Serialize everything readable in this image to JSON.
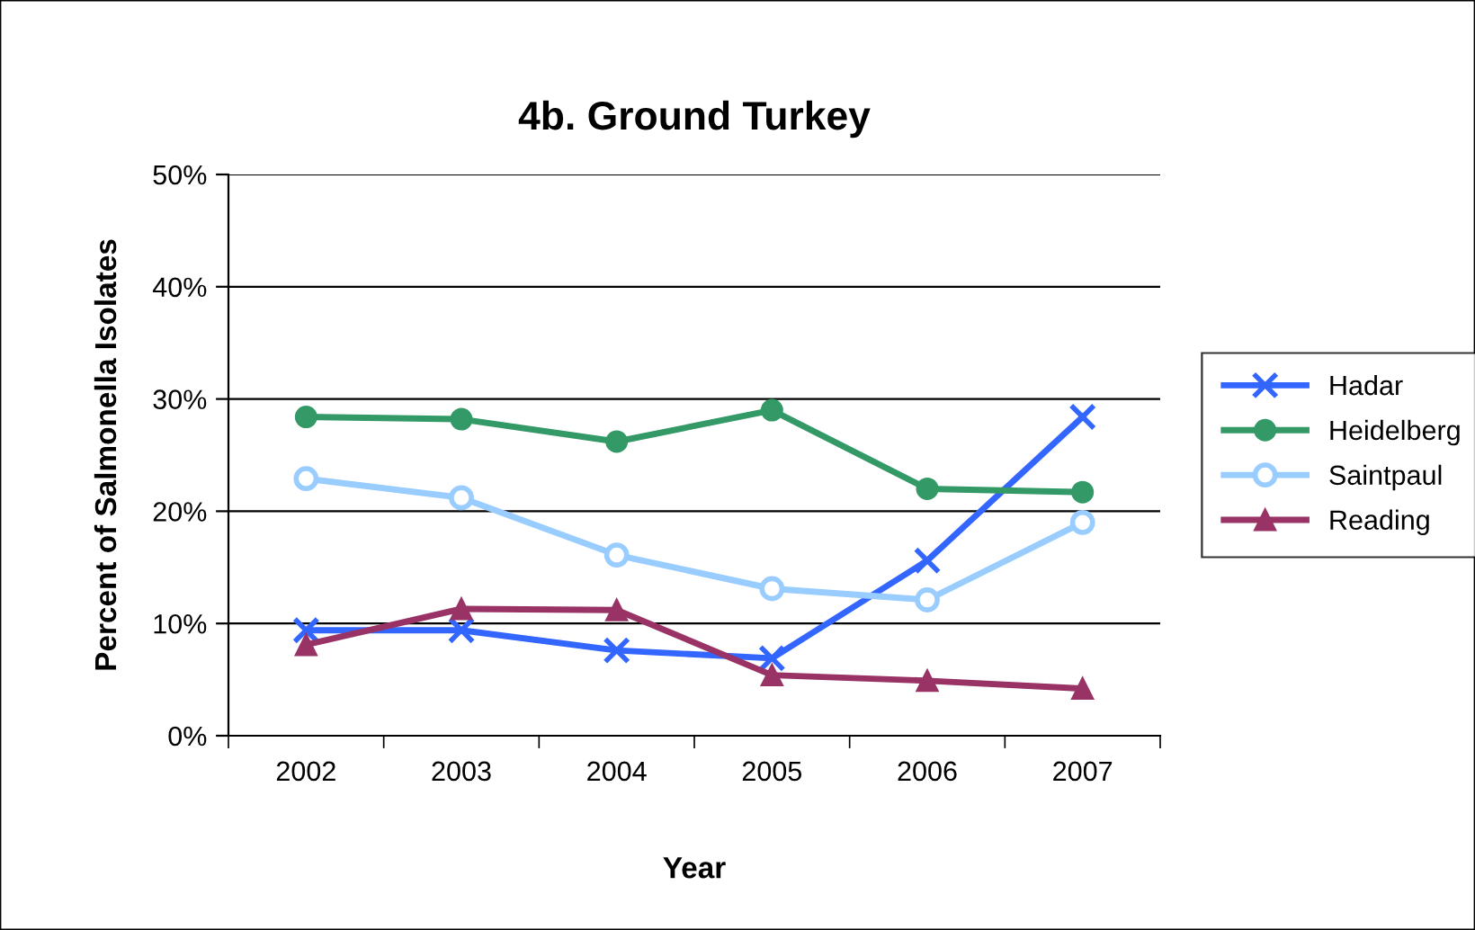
{
  "chart_data": {
    "type": "line",
    "title": "4b. Ground Turkey",
    "xlabel": "Year",
    "ylabel": "Percent of Salmonella Isolates",
    "categories": [
      "2002",
      "2003",
      "2004",
      "2005",
      "2006",
      "2007"
    ],
    "series": [
      {
        "name": "Hadar",
        "color": "#3366ff",
        "marker": "cross",
        "values": [
          9.4,
          9.4,
          7.6,
          6.9,
          15.6,
          28.4
        ]
      },
      {
        "name": "Heidelberg",
        "color": "#339966",
        "marker": "circle",
        "values": [
          28.4,
          28.2,
          26.2,
          29.0,
          22.0,
          21.7
        ]
      },
      {
        "name": "Saintpaul",
        "color": "#99ccff",
        "marker": "circle_open",
        "values": [
          22.9,
          21.2,
          16.1,
          13.1,
          12.1,
          19.0
        ]
      },
      {
        "name": "Reading",
        "color": "#993366",
        "marker": "triangle",
        "values": [
          8.1,
          11.3,
          11.2,
          5.4,
          4.9,
          4.2
        ]
      }
    ],
    "ylim": [
      0,
      50
    ],
    "yticks": [
      {
        "value": 0,
        "label": "0%"
      },
      {
        "value": 10,
        "label": "10%"
      },
      {
        "value": 20,
        "label": "20%"
      },
      {
        "value": 30,
        "label": "30%"
      },
      {
        "value": 40,
        "label": "40%"
      },
      {
        "value": 50,
        "label": "50%"
      }
    ],
    "grid": "y",
    "legend": "right",
    "line_style": "solid"
  }
}
